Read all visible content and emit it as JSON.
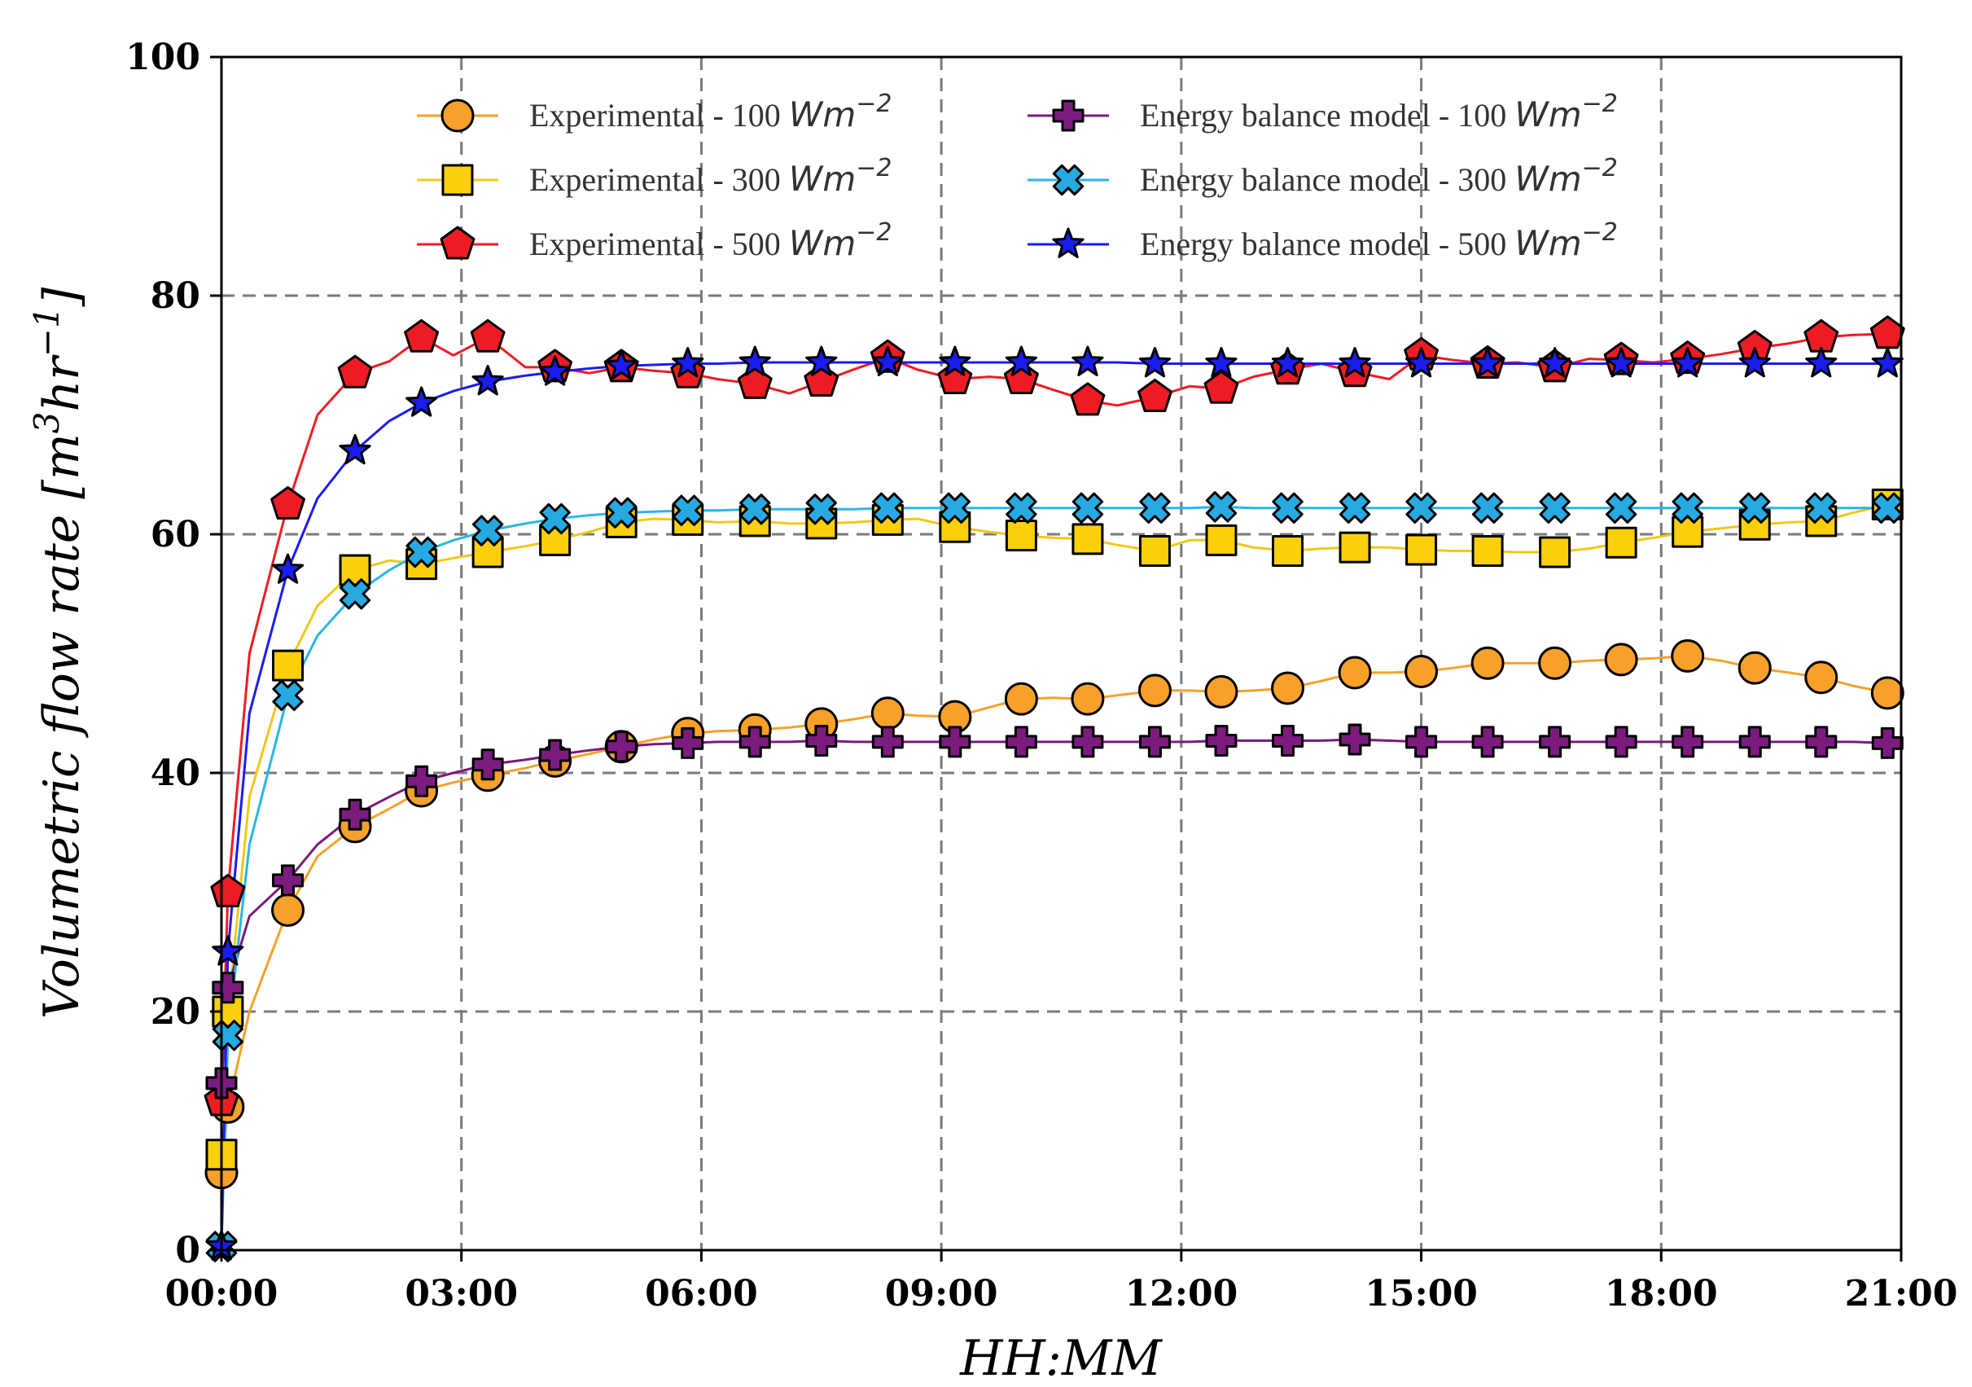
{
  "chart_data": {
    "type": "line",
    "xlabel": "HH:MM",
    "ylabel": "Volumetric flow rate [m³hr⁻¹]",
    "ylabel_base": "Volumetric flow rate [m",
    "ylabel_sup1": "3",
    "ylabel_mid": "hr",
    "ylabel_sup2": "−1",
    "ylabel_end": "]",
    "xlim": [
      0,
      21
    ],
    "ylim": [
      0,
      100
    ],
    "grid": true,
    "legend_position": "top",
    "x_ticks": [
      0,
      3,
      6,
      9,
      12,
      15,
      18,
      21
    ],
    "x_tick_labels": [
      "00:00",
      "03:00",
      "06:00",
      "09:00",
      "12:00",
      "15:00",
      "18:00",
      "21:00"
    ],
    "y_ticks": [
      0,
      20,
      40,
      60,
      80,
      100
    ],
    "y_tick_labels": [
      "0",
      "20",
      "40",
      "60",
      "80",
      "100"
    ],
    "unit_text": "Wm",
    "unit_exp": "−2",
    "series": [
      {
        "name": "Experimental - 100 Wm⁻²",
        "label": "Experimental - 100 ",
        "color": "#f7a12a",
        "marker": "circle",
        "marker_color": "#f7a12a",
        "x": [
          0,
          0.08,
          0.35,
          0.83,
          1.2,
          1.67,
          2.1,
          2.5,
          2.9,
          3.33,
          3.8,
          4.17,
          4.6,
          5.0,
          5.4,
          5.83,
          6.2,
          6.67,
          7.1,
          7.5,
          7.9,
          8.33,
          8.7,
          9.17,
          9.6,
          10.0,
          10.4,
          10.83,
          11.2,
          11.67,
          12.1,
          12.5,
          12.9,
          13.33,
          13.75,
          14.17,
          14.6,
          15.0,
          15.4,
          15.83,
          16.2,
          16.67,
          17.1,
          17.5,
          17.9,
          18.33,
          18.75,
          19.17,
          19.6,
          20.0,
          20.4,
          20.83
        ],
        "y": [
          6.5,
          12,
          20,
          28.5,
          33,
          35.5,
          37,
          38.5,
          39.2,
          39.8,
          40.4,
          41,
          41.6,
          42.2,
          42.8,
          43.3,
          43.5,
          43.6,
          43.8,
          44.1,
          44.5,
          45,
          44.8,
          44.7,
          45.5,
          46.2,
          46.3,
          46.2,
          46.5,
          46.9,
          46.9,
          46.8,
          46.9,
          47.1,
          47.7,
          48.4,
          48.4,
          48.5,
          48.8,
          49.2,
          49.2,
          49.2,
          49.4,
          49.5,
          49.6,
          49.8,
          49.4,
          48.8,
          48.4,
          48.0,
          47.3,
          46.7
        ]
      },
      {
        "name": "Experimental - 300 Wm⁻²",
        "label": "Experimental - 300 ",
        "color": "#f2c819",
        "marker": "square",
        "marker_color": "#fbd00b",
        "x": [
          0,
          0.08,
          0.35,
          0.83,
          1.2,
          1.67,
          2.1,
          2.5,
          2.9,
          3.33,
          3.8,
          4.17,
          4.6,
          5.0,
          5.4,
          5.83,
          6.2,
          6.67,
          7.1,
          7.5,
          7.9,
          8.33,
          8.7,
          9.17,
          9.6,
          10.0,
          10.4,
          10.83,
          11.2,
          11.67,
          12.1,
          12.5,
          12.9,
          13.33,
          13.75,
          14.17,
          14.6,
          15.0,
          15.4,
          15.83,
          16.2,
          16.67,
          17.1,
          17.5,
          17.9,
          18.33,
          18.75,
          19.17,
          19.6,
          20.0,
          20.4,
          20.83
        ],
        "y": [
          8,
          20,
          38,
          49,
          54,
          57,
          57.8,
          57.5,
          58,
          58.5,
          59,
          59.5,
          60.2,
          61,
          61.3,
          61.2,
          61,
          61.1,
          60.9,
          60.9,
          61,
          61.2,
          61.3,
          60.6,
          60.2,
          59.9,
          59.7,
          59.6,
          59.1,
          58.6,
          59.5,
          59.5,
          58.9,
          58.6,
          58.8,
          58.9,
          58.9,
          58.7,
          58.6,
          58.6,
          58.5,
          58.5,
          58.8,
          59.3,
          59.7,
          60.2,
          60.5,
          60.8,
          61,
          61.1,
          61.8,
          62.5
        ]
      },
      {
        "name": "Experimental - 500 Wm⁻²",
        "label": "Experimental - 500 ",
        "color": "#ee1d23",
        "marker": "pentagon",
        "marker_color": "#ed1c24",
        "x": [
          0,
          0.08,
          0.35,
          0.83,
          1.2,
          1.67,
          2.1,
          2.5,
          2.9,
          3.33,
          3.8,
          4.17,
          4.6,
          5.0,
          5.4,
          5.83,
          6.2,
          6.67,
          7.1,
          7.5,
          7.9,
          8.33,
          8.7,
          9.17,
          9.6,
          10.0,
          10.4,
          10.83,
          11.2,
          11.67,
          12.1,
          12.5,
          12.9,
          13.33,
          13.75,
          14.17,
          14.6,
          15.0,
          15.4,
          15.83,
          16.2,
          16.67,
          17.1,
          17.5,
          17.9,
          18.33,
          18.75,
          19.17,
          19.6,
          20.0,
          20.4,
          20.83
        ],
        "y": [
          12.5,
          30,
          50,
          62.5,
          70,
          73.5,
          74.5,
          76.5,
          75,
          76.5,
          74,
          74,
          73.5,
          74,
          73.7,
          73.5,
          73,
          72.6,
          71.8,
          72.8,
          73.8,
          74.8,
          73.8,
          73,
          73.2,
          73,
          72.1,
          71.2,
          70.8,
          71.5,
          72.4,
          72.2,
          73.2,
          73.8,
          74.3,
          73.6,
          73,
          75,
          74.6,
          74.3,
          74.4,
          74,
          74.7,
          74.6,
          74.4,
          74.7,
          75.1,
          75.6,
          76,
          76.5,
          76.7,
          76.8
        ]
      },
      {
        "name": "Energy balance model - 100 Wm⁻²",
        "label": "Energy balance model - 100 ",
        "color": "#7a1a7c",
        "marker": "plus",
        "marker_color": "#7b1c7e",
        "x": [
          0,
          0.08,
          0.35,
          0.83,
          1.2,
          1.67,
          2.1,
          2.5,
          2.9,
          3.33,
          3.8,
          4.17,
          4.6,
          5.0,
          5.4,
          5.83,
          6.2,
          6.67,
          7.1,
          7.5,
          7.9,
          8.33,
          8.7,
          9.17,
          9.6,
          10.0,
          10.4,
          10.83,
          11.2,
          11.67,
          12.1,
          12.5,
          12.9,
          13.33,
          13.75,
          14.17,
          14.6,
          15.0,
          15.4,
          15.83,
          16.2,
          16.67,
          17.1,
          17.5,
          17.9,
          18.33,
          18.75,
          19.17,
          19.6,
          20.0,
          20.4,
          20.83
        ],
        "y": [
          14,
          22,
          28,
          31,
          34,
          36.5,
          38,
          39.3,
          40,
          40.7,
          41.1,
          41.5,
          41.9,
          42.2,
          42.4,
          42.5,
          42.6,
          42.6,
          42.6,
          42.7,
          42.6,
          42.6,
          42.6,
          42.6,
          42.6,
          42.6,
          42.6,
          42.6,
          42.6,
          42.6,
          42.6,
          42.7,
          42.7,
          42.7,
          42.7,
          42.8,
          42.7,
          42.6,
          42.6,
          42.6,
          42.6,
          42.6,
          42.6,
          42.6,
          42.6,
          42.6,
          42.6,
          42.6,
          42.6,
          42.6,
          42.6,
          42.5
        ]
      },
      {
        "name": "Energy balance model - 300 Wm⁻²",
        "label": "Energy balance model - 300 ",
        "color": "#29b6e8",
        "marker": "x",
        "marker_color": "#27aae1",
        "x": [
          0,
          0.08,
          0.35,
          0.83,
          1.2,
          1.67,
          2.1,
          2.5,
          2.9,
          3.33,
          3.8,
          4.17,
          4.6,
          5.0,
          5.4,
          5.83,
          6.2,
          6.67,
          7.1,
          7.5,
          7.9,
          8.33,
          8.7,
          9.17,
          9.6,
          10.0,
          10.4,
          10.83,
          11.2,
          11.67,
          12.1,
          12.5,
          12.9,
          13.33,
          13.75,
          14.17,
          14.6,
          15.0,
          15.4,
          15.83,
          16.2,
          16.67,
          17.1,
          17.5,
          17.9,
          18.33,
          18.75,
          19.17,
          19.6,
          20.0,
          20.4,
          20.83
        ],
        "y": [
          0.3,
          18,
          34,
          46.5,
          51.5,
          55,
          57,
          58.5,
          59.5,
          60.3,
          60.9,
          61.3,
          61.6,
          61.8,
          61.9,
          62,
          62,
          62.1,
          62.1,
          62.1,
          62.1,
          62.2,
          62.2,
          62.2,
          62.2,
          62.2,
          62.2,
          62.2,
          62.2,
          62.2,
          62.2,
          62.3,
          62.2,
          62.2,
          62.2,
          62.2,
          62.2,
          62.2,
          62.2,
          62.2,
          62.2,
          62.2,
          62.2,
          62.2,
          62.2,
          62.2,
          62.2,
          62.2,
          62.2,
          62.2,
          62.2,
          62.2
        ]
      },
      {
        "name": "Energy balance model - 500 Wm⁻²",
        "label": "Energy balance model - 500 ",
        "color": "#1b1cf2",
        "marker": "star",
        "marker_color": "#1b1cf2",
        "x": [
          0,
          0.08,
          0.35,
          0.83,
          1.2,
          1.67,
          2.1,
          2.5,
          2.9,
          3.33,
          3.8,
          4.17,
          4.6,
          5.0,
          5.4,
          5.83,
          6.2,
          6.67,
          7.1,
          7.5,
          7.9,
          8.33,
          8.7,
          9.17,
          9.6,
          10.0,
          10.4,
          10.83,
          11.2,
          11.67,
          12.1,
          12.5,
          12.9,
          13.33,
          13.75,
          14.17,
          14.6,
          15.0,
          15.4,
          15.83,
          16.2,
          16.67,
          17.1,
          17.5,
          17.9,
          18.33,
          18.75,
          19.17,
          19.6,
          20.0,
          20.4,
          20.83
        ],
        "y": [
          0.3,
          25,
          45,
          57,
          63,
          67,
          69.5,
          71,
          72,
          72.8,
          73.3,
          73.6,
          73.9,
          74.1,
          74.2,
          74.3,
          74.3,
          74.4,
          74.4,
          74.4,
          74.4,
          74.4,
          74.4,
          74.4,
          74.4,
          74.4,
          74.4,
          74.4,
          74.4,
          74.3,
          74.3,
          74.3,
          74.3,
          74.3,
          74.3,
          74.3,
          74.3,
          74.3,
          74.3,
          74.3,
          74.3,
          74.3,
          74.3,
          74.3,
          74.3,
          74.3,
          74.3,
          74.3,
          74.3,
          74.3,
          74.3,
          74.3
        ]
      }
    ]
  }
}
